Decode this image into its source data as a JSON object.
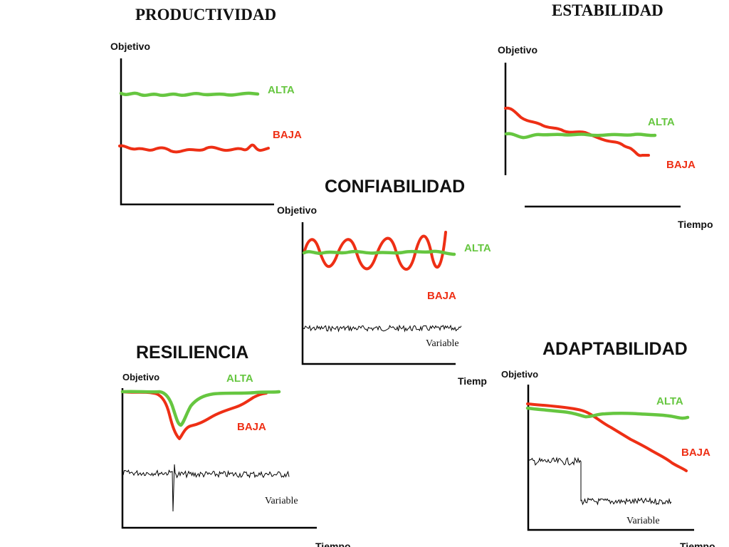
{
  "colors": {
    "alta": "#66c640",
    "baja": "#ee2f15",
    "axis": "#000000"
  },
  "panels": {
    "productividad": {
      "title": "PRODUCTIVIDAD",
      "y_label": "Objetivo",
      "alta_label": "ALTA",
      "baja_label": "BAJA"
    },
    "estabilidad": {
      "title": "ESTABILIDAD",
      "y_label": "Objetivo",
      "x_label": "Tiempo",
      "alta_label": "ALTA",
      "baja_label": "BAJA"
    },
    "confiabilidad": {
      "title": "CONFIABILIDAD",
      "y_label": "Objetivo",
      "x_label": "Tiemp",
      "alta_label": "ALTA",
      "baja_label": "BAJA",
      "variable_label": "Variable"
    },
    "resiliencia": {
      "title": "RESILIENCIA",
      "y_label": "Objetivo",
      "x_label": "Tiempo",
      "alta_label": "ALTA",
      "baja_label": "BAJA",
      "variable_label": "Variable"
    },
    "adaptabilidad": {
      "title": "ADAPTABILIDAD",
      "y_label": "Objetivo",
      "x_label": "Tiempo",
      "alta_label": "ALTA",
      "baja_label": "BAJA",
      "variable_label": "Variable"
    }
  }
}
